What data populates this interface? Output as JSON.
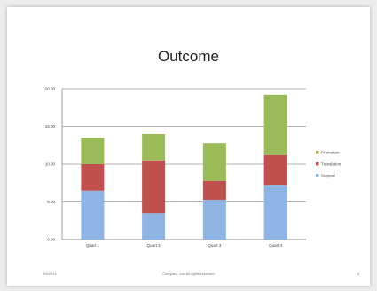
{
  "slide": {
    "footer_date": "9/9/2014",
    "footer_text": "Company, Inc. All rights reserved",
    "page_number": "4"
  },
  "chart_data": {
    "type": "bar",
    "stacked": true,
    "title": "Outcome",
    "categories": [
      "Quart 1",
      "Quart 2",
      "Quart 3",
      "Quart 4"
    ],
    "series": [
      {
        "name": "Support",
        "values": [
          6.5,
          3.5,
          5.3,
          7.2
        ],
        "color": "#8eb4e3"
      },
      {
        "name": "Translation",
        "values": [
          3.5,
          7.0,
          2.5,
          4.0
        ],
        "color": "#c0504d"
      },
      {
        "name": "Promotion",
        "values": [
          3.5,
          3.5,
          5.0,
          8.0
        ],
        "color": "#9bbb59"
      }
    ],
    "ylim": [
      0,
      20
    ],
    "yticks": [
      0,
      5,
      10,
      15,
      20
    ],
    "ytick_labels": [
      "0.00",
      "5.00",
      "10.00",
      "15.00",
      "20.00"
    ],
    "grid": true,
    "legend": "right"
  }
}
